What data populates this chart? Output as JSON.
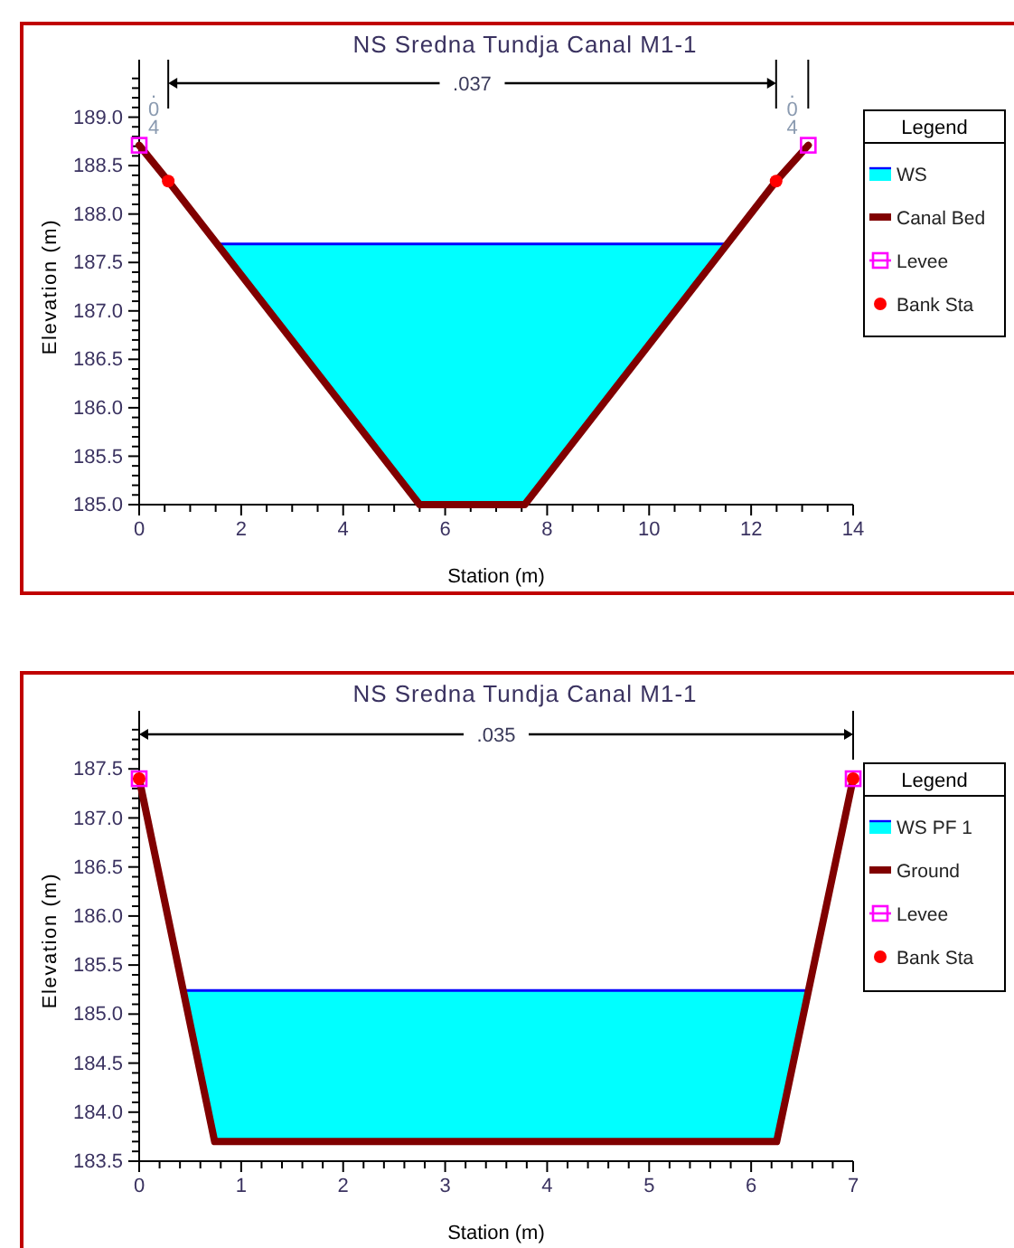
{
  "chart_data": [
    {
      "type": "line",
      "title": "NS Sredna Tundja Canal M1-1",
      "xlabel": "Station (m)",
      "ylabel": "Elevation (m)",
      "legend_title": "Legend",
      "legend": "right",
      "xlim": [
        0,
        14
      ],
      "ylim": [
        185,
        189.5
      ],
      "xticks": [
        0,
        {
          "value": 0.5,
          "label": null
        },
        {
          "value": 1,
          "label": null
        },
        {
          "value": 1.5,
          "label": null
        },
        2,
        {
          "value": 2.5,
          "label": null
        },
        {
          "value": 3,
          "label": null
        },
        {
          "value": 3.5,
          "label": null
        },
        4,
        {
          "value": 4.5,
          "label": null
        },
        {
          "value": 5,
          "label": null
        },
        {
          "value": 5.5,
          "label": null
        },
        6,
        {
          "value": 6.5,
          "label": null
        },
        {
          "value": 7,
          "label": null
        },
        {
          "value": 7.5,
          "label": null
        },
        8,
        {
          "value": 8.5,
          "label": null
        },
        {
          "value": 9,
          "label": null
        },
        {
          "value": 9.5,
          "label": null
        },
        10,
        {
          "value": 10.5,
          "label": null
        },
        {
          "value": 11,
          "label": null
        },
        {
          "value": 11.5,
          "label": null
        },
        12,
        {
          "value": 12.5,
          "label": null
        },
        {
          "value": 13,
          "label": null
        },
        {
          "value": 13.5,
          "label": null
        },
        14
      ],
      "yticks": [
        {
          "value": 185,
          "label": "185.0"
        },
        {
          "value": 185.1,
          "label": null
        },
        {
          "value": 185.2,
          "label": null
        },
        {
          "value": 185.3,
          "label": null
        },
        {
          "value": 185.4,
          "label": null
        },
        185.5,
        {
          "value": 185.6,
          "label": null
        },
        {
          "value": 185.7,
          "label": null
        },
        {
          "value": 185.8,
          "label": null
        },
        {
          "value": 185.9,
          "label": null
        },
        {
          "value": 186,
          "label": "186.0"
        },
        {
          "value": 186.1,
          "label": null
        },
        {
          "value": 186.2,
          "label": null
        },
        {
          "value": 186.3,
          "label": null
        },
        {
          "value": 186.4,
          "label": null
        },
        186.5,
        {
          "value": 186.6,
          "label": null
        },
        {
          "value": 186.7,
          "label": null
        },
        {
          "value": 186.8,
          "label": null
        },
        {
          "value": 186.9,
          "label": null
        },
        {
          "value": 187,
          "label": "187.0"
        },
        {
          "value": 187.1,
          "label": null
        },
        {
          "value": 187.2,
          "label": null
        },
        {
          "value": 187.3,
          "label": null
        },
        {
          "value": 187.4,
          "label": null
        },
        187.5,
        {
          "value": 187.6,
          "label": null
        },
        {
          "value": 187.7,
          "label": null
        },
        {
          "value": 187.8,
          "label": null
        },
        {
          "value": 187.9,
          "label": null
        },
        {
          "value": 188,
          "label": "188.0"
        },
        {
          "value": 188.1,
          "label": null
        },
        {
          "value": 188.2,
          "label": null
        },
        {
          "value": 188.3,
          "label": null
        },
        {
          "value": 188.4,
          "label": null
        },
        188.5,
        {
          "value": 188.6,
          "label": null
        },
        {
          "value": 188.7,
          "label": null
        },
        {
          "value": 188.8,
          "label": null
        },
        {
          "value": 188.9,
          "label": null
        },
        {
          "value": 189,
          "label": "189.0"
        },
        {
          "value": 189.1,
          "label": null
        },
        {
          "value": 189.2,
          "label": null
        },
        {
          "value": 189.3,
          "label": null
        },
        {
          "value": 189.4,
          "label": null
        }
      ],
      "series": [
        {
          "name": "WS",
          "type": "area",
          "color": "#00ffff",
          "x": [
            1.55,
            11.55
          ],
          "values": [
            187.69,
            187.69
          ]
        },
        {
          "name": "Canal Bed",
          "type": "line",
          "color": "#800000",
          "x": [
            0,
            0.57,
            5.5,
            7.56,
            12.49,
            13.12
          ],
          "values": [
            188.71,
            188.34,
            185.0,
            185.0,
            188.34,
            188.71
          ]
        },
        {
          "name": "Levee",
          "type": "scatter",
          "marker": "square",
          "color": "#ff00ff",
          "x": [
            0,
            13.12
          ],
          "values": [
            188.71,
            188.71
          ]
        },
        {
          "name": "Bank Sta",
          "type": "scatter",
          "marker": "circle",
          "color": "#ff0000",
          "x": [
            0.57,
            12.49
          ],
          "values": [
            188.34,
            188.34
          ]
        }
      ],
      "annotations": [
        ".04",
        ".037",
        ".04"
      ]
    },
    {
      "type": "line",
      "title": "NS Sredna Tundja Canal M1-1",
      "xlabel": "Station (m)",
      "ylabel": "Elevation (m)",
      "legend_title": "Legend",
      "legend": "right",
      "xlim": [
        0,
        7
      ],
      "ylim": [
        183.5,
        188.0
      ],
      "xticks": [
        0,
        {
          "value": 0.2,
          "label": null
        },
        {
          "value": 0.4,
          "label": null
        },
        {
          "value": 0.6,
          "label": null
        },
        {
          "value": 0.8,
          "label": null
        },
        1,
        {
          "value": 1.2,
          "label": null
        },
        {
          "value": 1.4,
          "label": null
        },
        {
          "value": 1.6,
          "label": null
        },
        {
          "value": 1.8,
          "label": null
        },
        2,
        {
          "value": 2.2,
          "label": null
        },
        {
          "value": 2.4,
          "label": null
        },
        {
          "value": 2.6,
          "label": null
        },
        {
          "value": 2.8,
          "label": null
        },
        3,
        {
          "value": 3.2,
          "label": null
        },
        {
          "value": 3.4,
          "label": null
        },
        {
          "value": 3.6,
          "label": null
        },
        {
          "value": 3.8,
          "label": null
        },
        4,
        {
          "value": 4.2,
          "label": null
        },
        {
          "value": 4.4,
          "label": null
        },
        {
          "value": 4.6,
          "label": null
        },
        {
          "value": 4.8,
          "label": null
        },
        5,
        {
          "value": 5.2,
          "label": null
        },
        {
          "value": 5.4,
          "label": null
        },
        {
          "value": 5.6,
          "label": null
        },
        {
          "value": 5.8,
          "label": null
        },
        6,
        {
          "value": 6.2,
          "label": null
        },
        {
          "value": 6.4,
          "label": null
        },
        {
          "value": 6.6,
          "label": null
        },
        {
          "value": 6.8,
          "label": null
        },
        7
      ],
      "yticks": [
        183.5,
        {
          "value": 183.6,
          "label": null
        },
        {
          "value": 183.7,
          "label": null
        },
        {
          "value": 183.8,
          "label": null
        },
        {
          "value": 183.9,
          "label": null
        },
        {
          "value": 184,
          "label": "184.0"
        },
        {
          "value": 184.1,
          "label": null
        },
        {
          "value": 184.2,
          "label": null
        },
        {
          "value": 184.3,
          "label": null
        },
        {
          "value": 184.4,
          "label": null
        },
        184.5,
        {
          "value": 184.6,
          "label": null
        },
        {
          "value": 184.7,
          "label": null
        },
        {
          "value": 184.8,
          "label": null
        },
        {
          "value": 184.9,
          "label": null
        },
        {
          "value": 185,
          "label": "185.0"
        },
        {
          "value": 185.1,
          "label": null
        },
        {
          "value": 185.2,
          "label": null
        },
        {
          "value": 185.3,
          "label": null
        },
        {
          "value": 185.4,
          "label": null
        },
        185.5,
        {
          "value": 185.6,
          "label": null
        },
        {
          "value": 185.7,
          "label": null
        },
        {
          "value": 185.8,
          "label": null
        },
        {
          "value": 185.9,
          "label": null
        },
        {
          "value": 186,
          "label": "186.0"
        },
        {
          "value": 186.1,
          "label": null
        },
        {
          "value": 186.2,
          "label": null
        },
        {
          "value": 186.3,
          "label": null
        },
        {
          "value": 186.4,
          "label": null
        },
        186.5,
        {
          "value": 186.6,
          "label": null
        },
        {
          "value": 186.7,
          "label": null
        },
        {
          "value": 186.8,
          "label": null
        },
        {
          "value": 186.9,
          "label": null
        },
        {
          "value": 187,
          "label": "187.0"
        },
        {
          "value": 187.1,
          "label": null
        },
        {
          "value": 187.2,
          "label": null
        },
        {
          "value": 187.3,
          "label": null
        },
        {
          "value": 187.4,
          "label": null
        },
        187.5,
        {
          "value": 187.6,
          "label": null
        },
        {
          "value": 187.7,
          "label": null
        },
        {
          "value": 187.8,
          "label": null
        },
        {
          "value": 187.9,
          "label": null
        }
      ],
      "series": [
        {
          "name": "WS PF 1",
          "type": "area",
          "color": "#00ffff",
          "x": [
            0.44,
            6.56
          ],
          "values": [
            185.24,
            185.24
          ]
        },
        {
          "name": "Ground",
          "type": "line",
          "color": "#800000",
          "x": [
            0,
            0.74,
            6.25,
            7
          ],
          "values": [
            187.4,
            183.7,
            183.7,
            187.4
          ]
        },
        {
          "name": "Levee",
          "type": "scatter",
          "marker": "square",
          "color": "#ff00ff",
          "x": [
            0,
            7
          ],
          "values": [
            187.4,
            187.4
          ]
        },
        {
          "name": "Bank Sta",
          "type": "scatter",
          "marker": "circle",
          "color": "#ff0000",
          "x": [
            0,
            7
          ],
          "values": [
            187.4,
            187.4
          ]
        }
      ],
      "annotations": [
        ".035"
      ]
    }
  ]
}
